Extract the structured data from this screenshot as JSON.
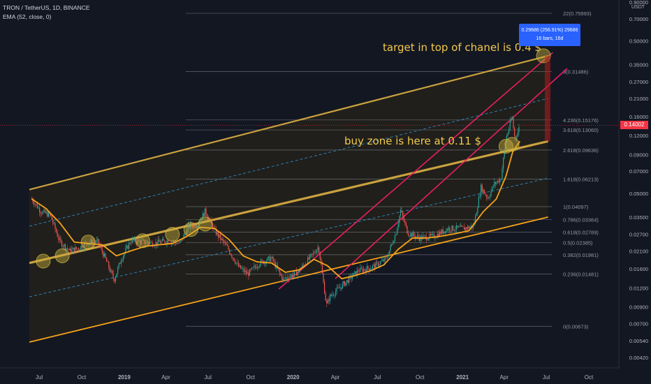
{
  "header": {
    "symbol_line": "TRON / TetherUS, 1D, BINANCE",
    "indicator_line": "EMA (52, close, 0)"
  },
  "annotations": {
    "target_text": "target in top of chanel is 0.4 $",
    "buy_zone_text": "buy zone is here at 0.11 $"
  },
  "measure_box": {
    "line1": "0.29686 (256.91%) 29686",
    "line2": "16 bars, 16d"
  },
  "price_badge": "0.14002",
  "colors": {
    "background": "#131722",
    "candle_up": "#26a69a",
    "candle_down": "#ef5350",
    "ema": "#f7a21b",
    "channel_gold": "#c9a13e",
    "channel_red": "#e91e63",
    "fib": "#787b86",
    "annotation": "#f2c94c",
    "measure": "#2962ff"
  },
  "chart_data": {
    "type": "candlestick",
    "scale": "log",
    "ylim": [
      0.0036,
      0.9
    ],
    "y_unit": "USDT",
    "y_ticks": [
      "0.90000",
      "0.70000",
      "0.50000",
      "0.35000",
      "0.27000",
      "0.21000",
      "0.16000",
      "0.12000",
      "0.09000",
      "0.07000",
      "0.05000",
      "0.03500",
      "0.02700",
      "0.02100",
      "0.01600",
      "0.01200",
      "0.00900",
      "0.00700",
      "0.00540",
      "0.00420"
    ],
    "x_ticks": [
      "Jul",
      "Oct",
      "2019",
      "Apr",
      "Jul",
      "Oct",
      "2020",
      "Apr",
      "Jul",
      "Oct",
      "2021",
      "Apr",
      "Jul",
      "Oct"
    ],
    "fib_levels": [
      {
        "label": "0(0.00673)",
        "value": 0.00673
      },
      {
        "label": "0.236(0.01481)",
        "value": 0.01481
      },
      {
        "label": "0.382(0.01981)",
        "value": 0.01981
      },
      {
        "label": "0.5(0.02385)",
        "value": 0.02385
      },
      {
        "label": "0.618(0.02789)",
        "value": 0.02789
      },
      {
        "label": "0.786(0.03364)",
        "value": 0.03364
      },
      {
        "label": "1(0.04097)",
        "value": 0.04097
      },
      {
        "label": "1.618(0.06213)",
        "value": 0.06213
      },
      {
        "label": "2.618(0.09636)",
        "value": 0.09636
      },
      {
        "label": "3.618(0.13060)",
        "value": 0.1306
      },
      {
        "label": "4.236(0.15176)",
        "value": 0.15176
      },
      {
        "label": "9(0.31486)",
        "value": 0.31486
      },
      {
        "label": "22(0.75993)",
        "value": 0.75993
      }
    ],
    "price_path": [
      {
        "d": "2018-06-15",
        "v": 0.046
      },
      {
        "d": "2018-07-05",
        "v": 0.038
      },
      {
        "d": "2018-07-25",
        "v": 0.036
      },
      {
        "d": "2018-08-15",
        "v": 0.024
      },
      {
        "d": "2018-09-05",
        "v": 0.021
      },
      {
        "d": "2018-09-25",
        "v": 0.022
      },
      {
        "d": "2018-10-15",
        "v": 0.024
      },
      {
        "d": "2018-11-05",
        "v": 0.024
      },
      {
        "d": "2018-11-20",
        "v": 0.019
      },
      {
        "d": "2018-12-10",
        "v": 0.0135
      },
      {
        "d": "2018-12-25",
        "v": 0.0185
      },
      {
        "d": "2019-01-15",
        "v": 0.0245
      },
      {
        "d": "2019-02-10",
        "v": 0.024
      },
      {
        "d": "2019-03-05",
        "v": 0.0235
      },
      {
        "d": "2019-04-05",
        "v": 0.0245
      },
      {
        "d": "2019-05-01",
        "v": 0.0235
      },
      {
        "d": "2019-05-20",
        "v": 0.0305
      },
      {
        "d": "2019-06-10",
        "v": 0.0315
      },
      {
        "d": "2019-06-25",
        "v": 0.0385
      },
      {
        "d": "2019-07-15",
        "v": 0.0285
      },
      {
        "d": "2019-08-10",
        "v": 0.0225
      },
      {
        "d": "2019-09-05",
        "v": 0.0165
      },
      {
        "d": "2019-09-25",
        "v": 0.0148
      },
      {
        "d": "2019-10-20",
        "v": 0.0175
      },
      {
        "d": "2019-11-15",
        "v": 0.0188
      },
      {
        "d": "2019-12-10",
        "v": 0.0136
      },
      {
        "d": "2020-01-10",
        "v": 0.0152
      },
      {
        "d": "2020-02-10",
        "v": 0.0195
      },
      {
        "d": "2020-02-25",
        "v": 0.0225
      },
      {
        "d": "2020-03-13",
        "v": 0.0092
      },
      {
        "d": "2020-03-20",
        "v": 0.0105
      },
      {
        "d": "2020-04-20",
        "v": 0.0128
      },
      {
        "d": "2020-05-20",
        "v": 0.0155
      },
      {
        "d": "2020-06-20",
        "v": 0.0165
      },
      {
        "d": "2020-07-20",
        "v": 0.0185
      },
      {
        "d": "2020-08-10",
        "v": 0.0275
      },
      {
        "d": "2020-08-20",
        "v": 0.0385
      },
      {
        "d": "2020-09-05",
        "v": 0.0275
      },
      {
        "d": "2020-10-01",
        "v": 0.0255
      },
      {
        "d": "2020-11-01",
        "v": 0.0262
      },
      {
        "d": "2020-12-01",
        "v": 0.0295
      },
      {
        "d": "2021-01-05",
        "v": 0.0295
      },
      {
        "d": "2021-01-25",
        "v": 0.0305
      },
      {
        "d": "2021-02-10",
        "v": 0.055
      },
      {
        "d": "2021-02-25",
        "v": 0.0465
      },
      {
        "d": "2021-03-10",
        "v": 0.0575
      },
      {
        "d": "2021-03-25",
        "v": 0.0625
      },
      {
        "d": "2021-04-05",
        "v": 0.115
      },
      {
        "d": "2021-04-12",
        "v": 0.135
      },
      {
        "d": "2021-04-18",
        "v": 0.16
      },
      {
        "d": "2021-04-24",
        "v": 0.115
      },
      {
        "d": "2021-04-30",
        "v": 0.125
      },
      {
        "d": "2021-05-05",
        "v": 0.14
      }
    ],
    "ema": [
      {
        "d": "2018-06-15",
        "v": 0.046
      },
      {
        "d": "2018-07-15",
        "v": 0.04
      },
      {
        "d": "2018-08-15",
        "v": 0.032
      },
      {
        "d": "2018-09-15",
        "v": 0.024
      },
      {
        "d": "2018-10-15",
        "v": 0.0235
      },
      {
        "d": "2018-11-15",
        "v": 0.023
      },
      {
        "d": "2018-12-15",
        "v": 0.0195
      },
      {
        "d": "2019-01-15",
        "v": 0.021
      },
      {
        "d": "2019-02-15",
        "v": 0.0225
      },
      {
        "d": "2019-03-15",
        "v": 0.023
      },
      {
        "d": "2019-04-15",
        "v": 0.0235
      },
      {
        "d": "2019-05-15",
        "v": 0.026
      },
      {
        "d": "2019-06-15",
        "v": 0.03
      },
      {
        "d": "2019-07-15",
        "v": 0.0295
      },
      {
        "d": "2019-08-15",
        "v": 0.025
      },
      {
        "d": "2019-09-15",
        "v": 0.0195
      },
      {
        "d": "2019-10-15",
        "v": 0.0178
      },
      {
        "d": "2019-11-15",
        "v": 0.0175
      },
      {
        "d": "2019-12-15",
        "v": 0.0152
      },
      {
        "d": "2020-01-15",
        "v": 0.0158
      },
      {
        "d": "2020-02-15",
        "v": 0.0185
      },
      {
        "d": "2020-03-15",
        "v": 0.0168
      },
      {
        "d": "2020-04-15",
        "v": 0.0138
      },
      {
        "d": "2020-05-15",
        "v": 0.0145
      },
      {
        "d": "2020-06-15",
        "v": 0.0155
      },
      {
        "d": "2020-07-15",
        "v": 0.017
      },
      {
        "d": "2020-08-15",
        "v": 0.0215
      },
      {
        "d": "2020-09-15",
        "v": 0.0255
      },
      {
        "d": "2020-10-15",
        "v": 0.0255
      },
      {
        "d": "2020-11-15",
        "v": 0.0262
      },
      {
        "d": "2020-12-15",
        "v": 0.0272
      },
      {
        "d": "2021-01-15",
        "v": 0.0285
      },
      {
        "d": "2021-02-15",
        "v": 0.038
      },
      {
        "d": "2021-03-15",
        "v": 0.046
      },
      {
        "d": "2021-04-05",
        "v": 0.065
      },
      {
        "d": "2021-04-20",
        "v": 0.095
      },
      {
        "d": "2021-05-05",
        "v": 0.11
      }
    ],
    "gold_channel": {
      "top": [
        {
          "d": "2018-06-10",
          "v": 0.053
        },
        {
          "d": "2021-07-05",
          "v": 0.4
        }
      ],
      "middle": [
        {
          "d": "2018-06-10",
          "v": 0.0175
        },
        {
          "d": "2021-07-05",
          "v": 0.11
        }
      ],
      "bottom": [
        {
          "d": "2018-06-10",
          "v": 0.0053
        },
        {
          "d": "2021-07-05",
          "v": 0.035
        }
      ],
      "dashed_upper": [
        {
          "d": "2018-06-10",
          "v": 0.0305
        },
        {
          "d": "2021-07-05",
          "v": 0.21
        }
      ],
      "dashed_lower": [
        {
          "d": "2018-06-10",
          "v": 0.0105
        },
        {
          "d": "2021-07-05",
          "v": 0.063
        }
      ]
    },
    "red_channel": [
      [
        {
          "d": "2019-12-01",
          "v": 0.0118
        },
        {
          "d": "2021-07-15",
          "v": 0.42
        }
      ],
      [
        {
          "d": "2020-04-01",
          "v": 0.0138
        },
        {
          "d": "2021-08-15",
          "v": 0.33
        }
      ]
    ],
    "markers": [
      {
        "d": "2018-07-10",
        "v": 0.018
      },
      {
        "d": "2018-08-20",
        "v": 0.0195
      },
      {
        "d": "2018-10-15",
        "v": 0.024
      },
      {
        "d": "2019-02-10",
        "v": 0.0245
      },
      {
        "d": "2019-04-15",
        "v": 0.027
      },
      {
        "d": "2019-05-25",
        "v": 0.029
      },
      {
        "d": "2019-06-25",
        "v": 0.0315
      },
      {
        "d": "2021-04-05",
        "v": 0.102
      },
      {
        "d": "2021-04-18",
        "v": 0.105
      },
      {
        "d": "2021-06-25",
        "v": 0.4
      }
    ],
    "target_zone": {
      "d_start": "2021-06-28",
      "d_end": "2021-07-03",
      "low": 0.11,
      "high": 0.4
    }
  }
}
